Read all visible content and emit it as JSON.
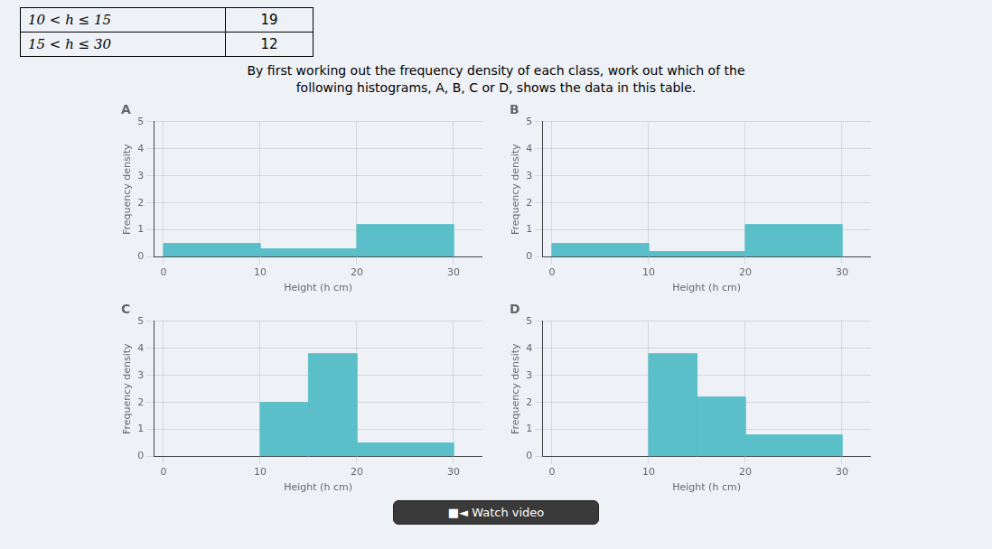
{
  "chart_data": [
    {
      "type": "histogram",
      "title": "A",
      "bins": [
        0,
        10,
        20,
        30
      ],
      "values": [
        0.5,
        0.3,
        1.2
      ],
      "color": "#5bbfc9",
      "xlabel": "Height (h cm)",
      "ylabel": "Frequency density",
      "xlim": [
        -1,
        33
      ],
      "xticks": [
        0,
        10,
        20,
        30
      ],
      "ylim": [
        0,
        5
      ],
      "yticks": [
        0,
        1,
        2,
        3,
        4,
        5
      ],
      "grid": true
    },
    {
      "type": "histogram",
      "title": "B",
      "bins": [
        0,
        10,
        20,
        30
      ],
      "values": [
        0.5,
        0.2,
        1.2
      ],
      "color": "#5bbfc9",
      "xlabel": "Height (h cm)",
      "ylabel": "Frequency density",
      "xlim": [
        -1,
        33
      ],
      "xticks": [
        0,
        10,
        20,
        30
      ],
      "ylim": [
        0,
        5
      ],
      "yticks": [
        0,
        1,
        2,
        3,
        4,
        5
      ],
      "grid": true
    },
    {
      "type": "histogram",
      "title": "C",
      "bins": [
        10,
        15,
        20,
        30
      ],
      "values": [
        2.0,
        3.8,
        0.5
      ],
      "color": "#5bbfc9",
      "xlabel": "Height (h cm)",
      "ylabel": "Frequency density",
      "xlim": [
        -1,
        33
      ],
      "xticks": [
        0,
        10,
        20,
        30
      ],
      "ylim": [
        0,
        5
      ],
      "yticks": [
        0,
        1,
        2,
        3,
        4,
        5
      ],
      "grid": true
    },
    {
      "type": "histogram",
      "title": "D",
      "bins": [
        10,
        15,
        20,
        30
      ],
      "values": [
        3.8,
        2.2,
        0.8
      ],
      "color": "#5bbfc9",
      "xlabel": "Height (h cm)",
      "ylabel": "Frequency density",
      "xlim": [
        -1,
        33
      ],
      "xticks": [
        0,
        10,
        20,
        30
      ],
      "ylim": [
        0,
        5
      ],
      "yticks": [
        0,
        1,
        2,
        3,
        4,
        5
      ],
      "grid": true
    }
  ],
  "table": [
    [
      "10 < h ≤ 15",
      19
    ],
    [
      "15 < h ≤ 30",
      12
    ]
  ],
  "annotations": [
    "By first working out the frequency density of each class, work out which of the",
    "following histograms, A, B, C or D, shows the data in this table.",
    "■◄ Watch video"
  ]
}
